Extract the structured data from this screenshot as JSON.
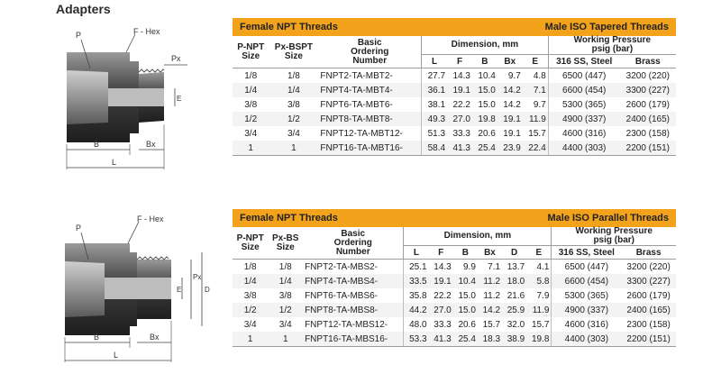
{
  "page": {
    "title": "Adapters"
  },
  "section1": {
    "drawing_labels": {
      "p": "P",
      "hex": "F - Hex",
      "px": "Px",
      "e": "E",
      "b": "B",
      "bx": "Bx",
      "l": "L"
    },
    "banner_left": "Female NPT Threads",
    "banner_right": "Male ISO Tapered Threads",
    "col_pnpt": [
      "P-NPT",
      "Size"
    ],
    "col_px": [
      "Px-BSPT",
      "Size"
    ],
    "col_basic": [
      "Basic",
      "Ordering",
      "Number"
    ],
    "dimension_title": "Dimension, mm",
    "working_pressure_title": [
      "Working Pressure",
      "psig (bar)"
    ],
    "dim_letters": [
      "L",
      "F",
      "B",
      "Bx",
      "E"
    ],
    "ss_label": "316 SS, Steel",
    "brass_label": "Brass",
    "rows": [
      [
        "1/8",
        "1/8",
        "FNPT2-TA-MBT2-",
        "27.7",
        "14.3",
        "10.4",
        "9.7",
        "4.8",
        "6500 (447)",
        "3200 (220)"
      ],
      [
        "1/4",
        "1/4",
        "FNPT4-TA-MBT4-",
        "36.1",
        "19.1",
        "15.0",
        "14.2",
        "7.1",
        "6600 (454)",
        "3300 (227)"
      ],
      [
        "3/8",
        "3/8",
        "FNPT6-TA-MBT6-",
        "38.1",
        "22.2",
        "15.0",
        "14.2",
        "9.7",
        "5300 (365)",
        "2600 (179)"
      ],
      [
        "1/2",
        "1/2",
        "FNPT8-TA-MBT8-",
        "49.3",
        "27.0",
        "19.8",
        "19.1",
        "11.9",
        "4900 (337)",
        "2400 (165)"
      ],
      [
        "3/4",
        "3/4",
        "FNPT12-TA-MBT12-",
        "51.3",
        "33.3",
        "20.6",
        "19.1",
        "15.7",
        "4600 (316)",
        "2300 (158)"
      ],
      [
        "1",
        "1",
        "FNPT16-TA-MBT16-",
        "58.4",
        "41.3",
        "25.4",
        "23.9",
        "22.4",
        "4400 (303)",
        "2200 (151)"
      ]
    ]
  },
  "section2": {
    "drawing_labels": {
      "p": "P",
      "hex": "F - Hex",
      "px": "Px",
      "e": "E",
      "d": "D",
      "b": "B",
      "bx": "Bx",
      "l": "L"
    },
    "banner_left": "Female NPT Threads",
    "banner_right": "Male ISO Parallel Threads",
    "col_pnpt": [
      "P-NPT",
      "Size"
    ],
    "col_px": [
      "Px-BS",
      "Size"
    ],
    "col_basic": [
      "Basic",
      "Ordering",
      "Number"
    ],
    "dimension_title": "Dimension, mm",
    "working_pressure_title": [
      "Working Pressure",
      "psig (bar)"
    ],
    "dim_letters": [
      "L",
      "F",
      "B",
      "Bx",
      "D",
      "E"
    ],
    "ss_label": "316 SS, Steel",
    "brass_label": "Brass",
    "rows": [
      [
        "1/8",
        "1/8",
        "FNPT2-TA-MBS2-",
        "25.1",
        "14.3",
        "9.9",
        "7.1",
        "13.7",
        "4.1",
        "6500 (447)",
        "3200 (220)"
      ],
      [
        "1/4",
        "1/4",
        "FNPT4-TA-MBS4-",
        "33.5",
        "19.1",
        "10.4",
        "11.2",
        "18.0",
        "5.8",
        "6600 (454)",
        "3300 (227)"
      ],
      [
        "3/8",
        "3/8",
        "FNPT6-TA-MBS6-",
        "35.8",
        "22.2",
        "15.0",
        "11.2",
        "21.6",
        "7.9",
        "5300 (365)",
        "2600 (179)"
      ],
      [
        "1/2",
        "1/2",
        "FNPT8-TA-MBS8-",
        "44.2",
        "27.0",
        "15.0",
        "14.2",
        "25.9",
        "11.9",
        "4900 (337)",
        "2400 (165)"
      ],
      [
        "3/4",
        "3/4",
        "FNPT12-TA-MBS12-",
        "48.0",
        "33.3",
        "20.6",
        "15.7",
        "32.0",
        "15.7",
        "4600 (316)",
        "2300 (158)"
      ],
      [
        "1",
        "1",
        "FNPT16-TA-MBS16-",
        "53.3",
        "41.3",
        "25.4",
        "18.3",
        "38.9",
        "19.8",
        "4400 (303)",
        "2200 (151)"
      ]
    ]
  },
  "colors": {
    "banner": "#f2a21b",
    "fitting_dark": "#3a3a3a",
    "fitting_mid": "#6e6e6e"
  }
}
